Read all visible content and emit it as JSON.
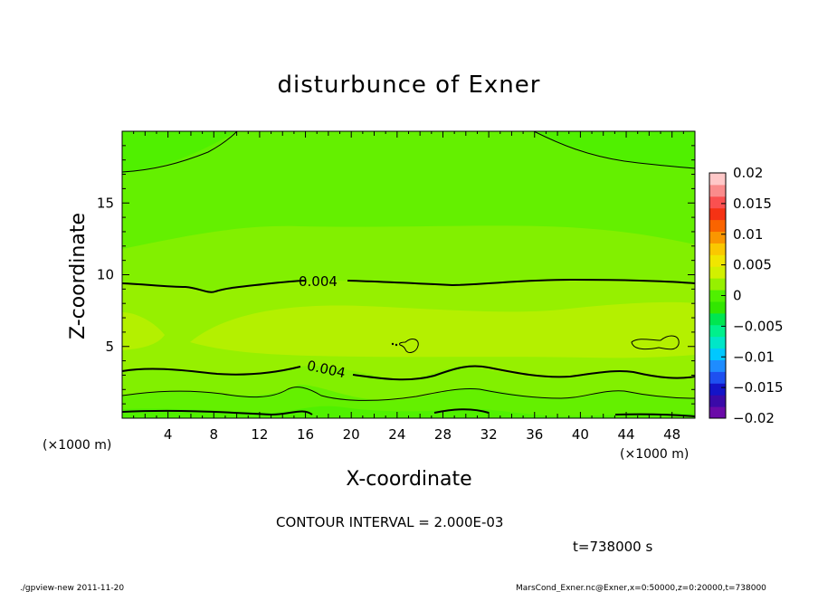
{
  "chart_data": {
    "type": "heatmap",
    "title": "disturbunce of Exner",
    "xlabel": "X-coordinate",
    "ylabel": "Z-coordinate",
    "x_unit": "(×1000 m)",
    "x_unit_right": "(×1000 m)",
    "y_unit": "(×1000 m)",
    "xlim": [
      0,
      50
    ],
    "ylim": [
      0,
      20
    ],
    "x_ticks": [
      4,
      8,
      12,
      16,
      20,
      24,
      28,
      32,
      36,
      40,
      44,
      48
    ],
    "y_ticks": [
      5,
      10,
      15
    ],
    "contour_interval_text": "CONTOUR INTERVAL = 2.000E-03",
    "time_text": "t=738000 s",
    "contour_labels": [
      "0.004",
      "0.004"
    ],
    "colorbar": {
      "vmin": -0.02,
      "vmax": 0.02,
      "tick_labels": [
        "0.02",
        "0.015",
        "0.01",
        "0.005",
        "0",
        "−0.005",
        "−0.01",
        "−0.015",
        "−0.02"
      ],
      "colors": [
        "#6a0aa8",
        "#3a0aa8",
        "#1414c8",
        "#1e50f0",
        "#1e8cff",
        "#00c8ff",
        "#00e6c8",
        "#00f08c",
        "#00e650",
        "#32e600",
        "#50f000",
        "#96f000",
        "#d2f000",
        "#f0e600",
        "#fac800",
        "#fa9600",
        "#fa6400",
        "#f53214",
        "#fa5050",
        "#fa8c8c",
        "#ffc8c8"
      ]
    },
    "field_bands_approx": [
      {
        "z_from": 0,
        "z_to": 1,
        "value": 0.0
      },
      {
        "z_from": 1,
        "z_to": 2,
        "value": 0.001
      },
      {
        "z_from": 2,
        "z_to": 3.5,
        "value": 0.003
      },
      {
        "z_from": 3.5,
        "z_to": 6.5,
        "value": 0.0055
      },
      {
        "z_from": 6.5,
        "z_to": 9.5,
        "value": 0.0045
      },
      {
        "z_from": 9.5,
        "z_to": 12,
        "value": 0.0035
      },
      {
        "z_from": 12,
        "z_to": 17,
        "value": 0.0015
      },
      {
        "z_from": 17,
        "z_to": 20,
        "value": 0.0005
      }
    ]
  },
  "footer": {
    "left": "./gpview-new   2011-11-20",
    "right": "MarsCond_Exner.nc@Exner,x=0:50000,z=0:20000,t=738000"
  }
}
